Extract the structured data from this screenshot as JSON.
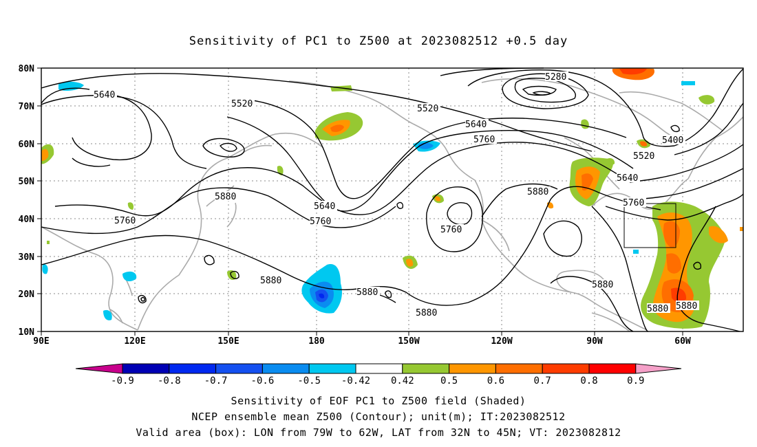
{
  "title": "Sensitivity of PC1 to Z500 at 2023082512 +0.5 day",
  "map": {
    "lat_labels": [
      "80N",
      "70N",
      "60N",
      "50N",
      "40N",
      "30N",
      "20N",
      "10N"
    ],
    "lon_labels": [
      "90E",
      "120E",
      "150E",
      "180",
      "150W",
      "120W",
      "90W",
      "60W"
    ],
    "contour_labels": [
      {
        "text": "5280"
      },
      {
        "text": "5640"
      },
      {
        "text": "5520"
      },
      {
        "text": "5520"
      },
      {
        "text": "5640"
      },
      {
        "text": "5760"
      },
      {
        "text": "5400"
      },
      {
        "text": "5520"
      },
      {
        "text": "5640"
      },
      {
        "text": "5760"
      },
      {
        "text": "5880"
      },
      {
        "text": "5880"
      },
      {
        "text": "5760"
      },
      {
        "text": "5640"
      },
      {
        "text": "5760"
      },
      {
        "text": "5760"
      },
      {
        "text": "5880"
      },
      {
        "text": "5880"
      },
      {
        "text": "5880"
      },
      {
        "text": "5880"
      },
      {
        "text": "5880"
      },
      {
        "text": "5880"
      }
    ],
    "valid_box": {
      "lon_from": "79W",
      "lon_to": "62W",
      "lat_from": "32N",
      "lat_to": "45N"
    }
  },
  "colorbar": {
    "labels": [
      "-0.9",
      "-0.8",
      "-0.7",
      "-0.6",
      "-0.5",
      "-0.42",
      "0.42",
      "0.5",
      "0.6",
      "0.7",
      "0.8",
      "0.9"
    ],
    "colors": [
      "#c8008c",
      "#0000b4",
      "#0028f0",
      "#1450f0",
      "#0a8cf0",
      "#00c8f0",
      "#ffffff",
      "#96c832",
      "#ff9600",
      "#ff6e00",
      "#ff3c00",
      "#ff0000",
      "#f5a0c8"
    ]
  },
  "captions": {
    "line1": "Sensitivity of EOF PC1 to Z500 field (Shaded)",
    "line2": "NCEP ensemble mean Z500 (Contour); unit(m); IT:2023082512",
    "line3": "Valid area (box): LON from 79W to 62W, LAT from 32N to 45N; VT: 2023082812"
  }
}
